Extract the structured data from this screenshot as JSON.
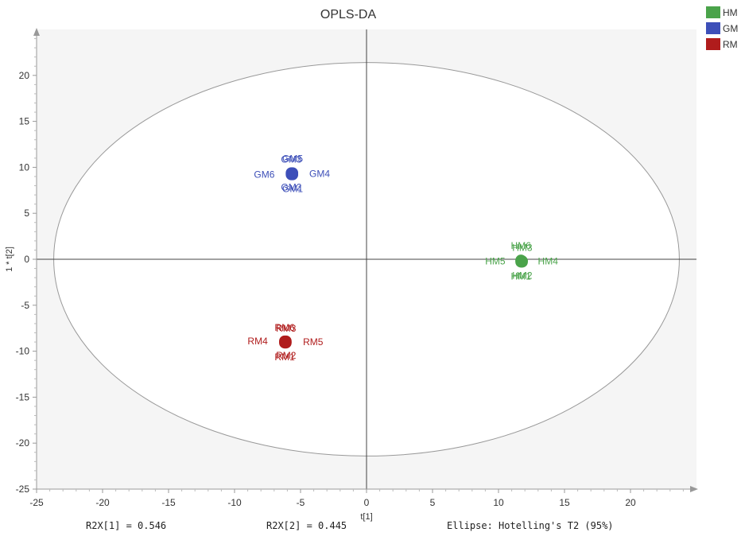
{
  "chart_data": {
    "type": "scatter",
    "title": "OPLS-DA",
    "xlabel": "t[1]",
    "ylabel": "1 * t[2]",
    "xlim": [
      -25,
      25
    ],
    "ylim": [
      -25,
      25
    ],
    "xticks": [
      -25,
      -20,
      -15,
      -10,
      -5,
      0,
      5,
      10,
      15,
      20
    ],
    "yticks": [
      -25,
      -20,
      -15,
      -10,
      -5,
      0,
      5,
      10,
      15,
      20
    ],
    "grid": false,
    "legend_position": "top-right",
    "series": [
      {
        "name": "HM",
        "color": "#4aa34a",
        "points": [
          {
            "label": "HM5",
            "x": 11.8,
            "y": -0.2
          },
          {
            "label": "HM4",
            "x": 11.7,
            "y": -0.2
          },
          {
            "label": "HM6",
            "x": 11.7,
            "y": -0.1
          },
          {
            "label": "HM3",
            "x": 11.8,
            "y": -0.3
          },
          {
            "label": "HM1",
            "x": 11.7,
            "y": -0.3
          },
          {
            "label": "HM2",
            "x": 11.8,
            "y": -0.2
          }
        ]
      },
      {
        "name": "GM",
        "color": "#3d4fb8",
        "points": [
          {
            "label": "GM6",
            "x": -5.7,
            "y": 9.2
          },
          {
            "label": "GM4",
            "x": -5.6,
            "y": 9.3
          },
          {
            "label": "GM5",
            "x": -5.6,
            "y": 9.4
          },
          {
            "label": "GM3",
            "x": -5.7,
            "y": 9.3
          },
          {
            "label": "GM1",
            "x": -5.6,
            "y": 9.2
          },
          {
            "label": "GM2",
            "x": -5.7,
            "y": 9.4
          }
        ]
      },
      {
        "name": "RM",
        "color": "#b01c1c",
        "points": [
          {
            "label": "RM4",
            "x": -6.2,
            "y": -8.9
          },
          {
            "label": "RM5",
            "x": -6.1,
            "y": -9.0
          },
          {
            "label": "RM3",
            "x": -6.1,
            "y": -9.1
          },
          {
            "label": "RM6",
            "x": -6.2,
            "y": -9.0
          },
          {
            "label": "RM2",
            "x": -6.1,
            "y": -8.9
          },
          {
            "label": "RM1",
            "x": -6.2,
            "y": -9.1
          }
        ]
      }
    ],
    "ellipse": {
      "cx": 0,
      "cy": 0,
      "rx": 23.7,
      "ry": 21.4,
      "color": "#999999"
    },
    "footer": {
      "r2x1": "R2X[1] = 0.546",
      "r2x2": "R2X[2] = 0.445",
      "ellipse_note": "Ellipse: Hotelling's T2 (95%)"
    }
  }
}
